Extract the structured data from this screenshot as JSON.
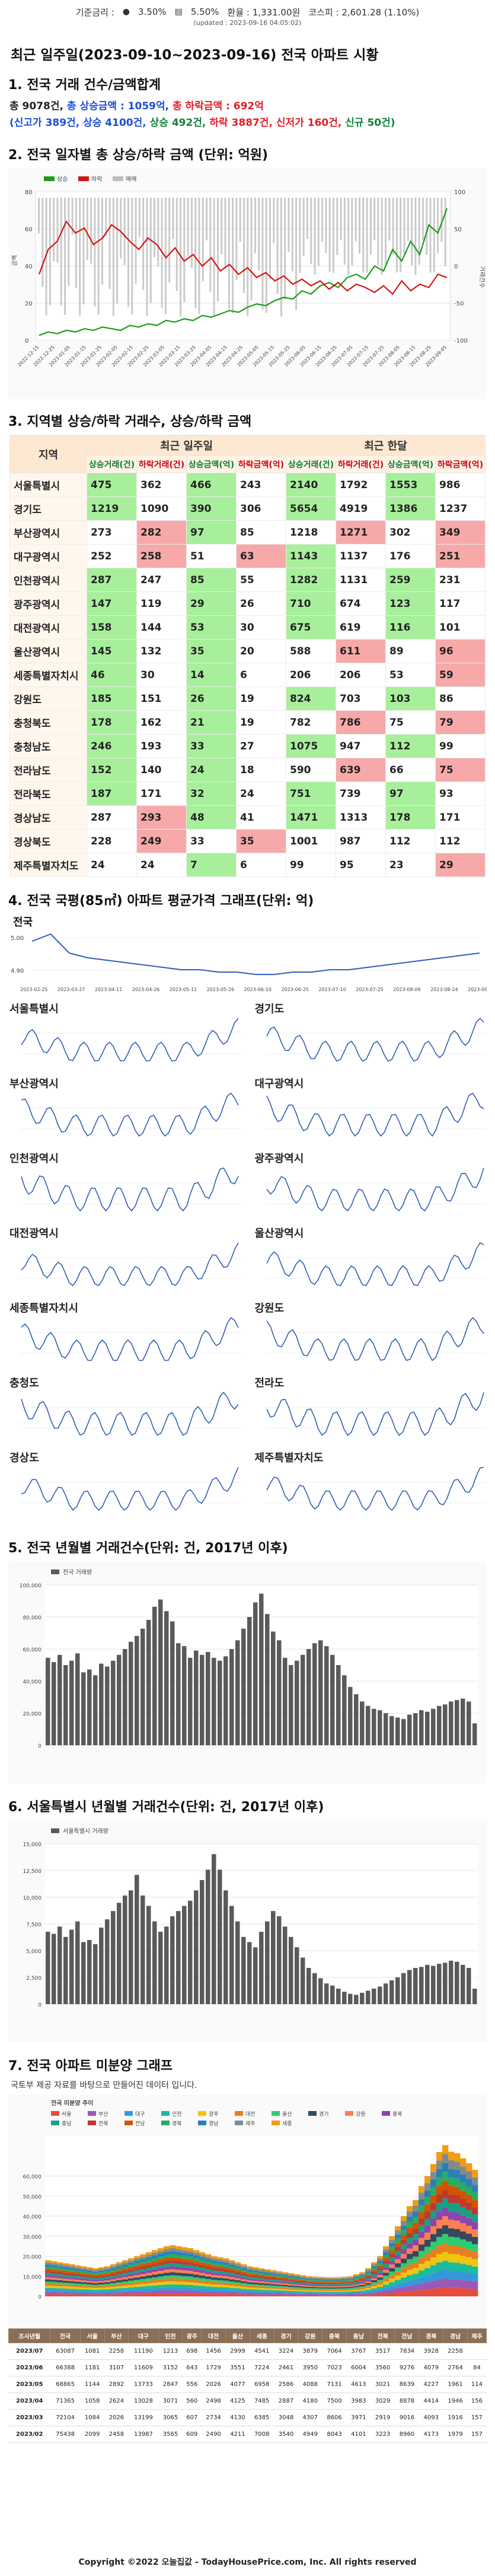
{
  "ticker": {
    "rate_label": "기준금리 :",
    "kr_rate": "3.50%",
    "us_rate": "5.50%",
    "fx": "환율 : 1,331.00원",
    "kospi": "코스피 : 2,601.28 (1.10%)",
    "updated": "(updated : 2023-09-16 04:05:02)"
  },
  "title": "최근 일주일(2023-09-10~2023-09-16) 전국 아파트 시황",
  "sections": {
    "s1": "1. 전국 거래 건수/금액합계",
    "s2": "2. 전국 일자별 총 상승/하락 금액 (단위: 억원)",
    "s3": "3. 지역별 상승/하락 거래수, 상승/하락 금액",
    "s4": "4. 전국 국평(85㎡) 아파트 평균가격 그래프(단위: 억)",
    "s5": "5. 전국 년월별 거래건수(단위: 건, 2017년 이후)",
    "s6": "6. 서울특별시 년월별 거래건수(단위: 건, 2017년 이후)",
    "s7": "7. 전국 아파트 미분양 그래프"
  },
  "summary": {
    "total": "총 9078건,",
    "up_amount": "총 상승금액 : 1059억,",
    "down_amount": "총 하락금액 : 692억",
    "line2_open": "(신고가 389건, 상승 4100건,",
    "flat": "상승 492건,",
    "line2_down": "하락 3887건, 신저가 160건,",
    "new": "신규 50건)"
  },
  "chart2": {
    "legend": [
      "상승",
      "하락",
      "매매"
    ],
    "ylabel": "금액",
    "y2label": "거래건수",
    "yticks": [
      "0",
      "20",
      "40",
      "60",
      "80"
    ],
    "y2ticks": [
      "100",
      "50",
      "0",
      "-50",
      "-100"
    ],
    "xticks": [
      "2022-12-15",
      "2022-12-25",
      "2023-01-05",
      "2023-01-15",
      "2023-01-25",
      "2023-02-05",
      "2023-02-15",
      "2023-02-25",
      "2023-03-05",
      "2023-03-15",
      "2023-03-25",
      "2023-04-05",
      "2023-04-15",
      "2023-04-25",
      "2023-05-05",
      "2023-05-15",
      "2023-05-25",
      "2023-06-05",
      "2023-06-15",
      "2023-06-25",
      "2023-07-05",
      "2023-07-15",
      "2023-07-25",
      "2023-08-05",
      "2023-08-15",
      "2023-08-25",
      "2023-09-05"
    ]
  },
  "table": {
    "h_region": "지역",
    "h_week": "최근 일주일",
    "h_month": "최근 한달",
    "sub": [
      "상승거래(건)",
      "하락거래(건)",
      "상승금액(억)",
      "하락금액(억)",
      "상승거래(건)",
      "하락거래(건)",
      "상승금액(억)",
      "하락금액(억)"
    ],
    "rows": [
      {
        "name": "서울특별시",
        "v": [
          "475",
          "362",
          "466",
          "243",
          "2140",
          "1792",
          "1553",
          "986"
        ],
        "h": [
          "g",
          "",
          "g",
          "",
          "g",
          "",
          "g",
          ""
        ]
      },
      {
        "name": "경기도",
        "v": [
          "1219",
          "1090",
          "390",
          "306",
          "5654",
          "4919",
          "1386",
          "1237"
        ],
        "h": [
          "g",
          "",
          "g",
          "",
          "g",
          "",
          "g",
          ""
        ]
      },
      {
        "name": "부산광역시",
        "v": [
          "273",
          "282",
          "97",
          "85",
          "1218",
          "1271",
          "302",
          "349"
        ],
        "h": [
          "",
          "r",
          "g",
          "",
          "",
          "r",
          "",
          "r"
        ]
      },
      {
        "name": "대구광역시",
        "v": [
          "252",
          "258",
          "51",
          "63",
          "1143",
          "1137",
          "176",
          "251"
        ],
        "h": [
          "",
          "r",
          "",
          "r",
          "g",
          "",
          "",
          "r"
        ]
      },
      {
        "name": "인천광역시",
        "v": [
          "287",
          "247",
          "85",
          "55",
          "1282",
          "1131",
          "259",
          "231"
        ],
        "h": [
          "g",
          "",
          "g",
          "",
          "g",
          "",
          "g",
          ""
        ]
      },
      {
        "name": "광주광역시",
        "v": [
          "147",
          "119",
          "29",
          "26",
          "710",
          "674",
          "123",
          "117"
        ],
        "h": [
          "g",
          "",
          "g",
          "",
          "g",
          "",
          "g",
          ""
        ]
      },
      {
        "name": "대전광역시",
        "v": [
          "158",
          "144",
          "53",
          "30",
          "675",
          "619",
          "116",
          "101"
        ],
        "h": [
          "g",
          "",
          "g",
          "",
          "g",
          "",
          "g",
          ""
        ]
      },
      {
        "name": "울산광역시",
        "v": [
          "145",
          "132",
          "35",
          "20",
          "588",
          "611",
          "89",
          "96"
        ],
        "h": [
          "g",
          "",
          "g",
          "",
          "",
          "r",
          "",
          "r"
        ]
      },
      {
        "name": "세종특별자치시",
        "v": [
          "46",
          "30",
          "14",
          "6",
          "206",
          "206",
          "53",
          "59"
        ],
        "h": [
          "g",
          "",
          "g",
          "",
          "",
          "",
          "",
          "r"
        ]
      },
      {
        "name": "강원도",
        "v": [
          "185",
          "151",
          "26",
          "19",
          "824",
          "703",
          "103",
          "86"
        ],
        "h": [
          "g",
          "",
          "g",
          "",
          "g",
          "",
          "g",
          ""
        ]
      },
      {
        "name": "충청북도",
        "v": [
          "178",
          "162",
          "21",
          "19",
          "782",
          "786",
          "75",
          "79"
        ],
        "h": [
          "g",
          "",
          "g",
          "",
          "",
          "r",
          "",
          "r"
        ]
      },
      {
        "name": "충청남도",
        "v": [
          "246",
          "193",
          "33",
          "27",
          "1075",
          "947",
          "112",
          "99"
        ],
        "h": [
          "g",
          "",
          "g",
          "",
          "g",
          "",
          "g",
          ""
        ]
      },
      {
        "name": "전라남도",
        "v": [
          "152",
          "140",
          "24",
          "18",
          "590",
          "639",
          "66",
          "75"
        ],
        "h": [
          "g",
          "",
          "g",
          "",
          "",
          "r",
          "",
          "r"
        ]
      },
      {
        "name": "전라북도",
        "v": [
          "187",
          "171",
          "32",
          "24",
          "751",
          "739",
          "97",
          "93"
        ],
        "h": [
          "g",
          "",
          "g",
          "",
          "g",
          "",
          "g",
          ""
        ]
      },
      {
        "name": "경상남도",
        "v": [
          "287",
          "293",
          "48",
          "41",
          "1471",
          "1313",
          "178",
          "171"
        ],
        "h": [
          "",
          "r",
          "g",
          "",
          "g",
          "",
          "g",
          ""
        ]
      },
      {
        "name": "경상북도",
        "v": [
          "228",
          "249",
          "33",
          "35",
          "1001",
          "987",
          "112",
          "112"
        ],
        "h": [
          "",
          "r",
          "",
          "r",
          "",
          "",
          "",
          ""
        ]
      },
      {
        "name": "제주특별자치도",
        "v": [
          "24",
          "24",
          "7",
          "6",
          "99",
          "95",
          "23",
          "29"
        ],
        "h": [
          "",
          "",
          "g",
          "",
          "",
          "",
          "",
          "r"
        ]
      }
    ]
  },
  "chart4": {
    "national": {
      "label": "전국",
      "yticks": [
        "5.00",
        "4.90"
      ],
      "xticks": [
        "2023-02-25",
        "2023-03-27",
        "2023-04-11",
        "2023-04-26",
        "2023-05-11",
        "2023-05-26",
        "2023-06-10",
        "2023-06-25",
        "2023-07-10",
        "2023-07-25",
        "2023-08-09",
        "2023-08-24",
        "2023-09-08"
      ]
    },
    "regions": [
      "서울특별시",
      "경기도",
      "부산광역시",
      "대구광역시",
      "인천광역시",
      "광주광역시",
      "대전광역시",
      "울산광역시",
      "세종특별자치시",
      "강원도",
      "충청도",
      "전라도",
      "경상도",
      "제주특별자치도"
    ]
  },
  "chart5": {
    "legend": "전국 거래량",
    "yticks": [
      "0",
      "20,000",
      "40,000",
      "60,000",
      "80,000",
      "100,000"
    ]
  },
  "chart6": {
    "legend": "서울특별시 거래량",
    "yticks": [
      "0",
      "2,500",
      "5,000",
      "7,500",
      "10,000",
      "12,500",
      "15,000"
    ]
  },
  "chart7": {
    "note": "국토부 제공 자료를 바탕으로 만들어진 데이터 입니다.",
    "legend_title": "전국 미분양 추이",
    "legend": [
      "서울",
      "부산",
      "대구",
      "인천",
      "광주",
      "대전",
      "울산",
      "경기",
      "강원",
      "충북",
      "충남",
      "전북",
      "전남",
      "경북",
      "경남",
      "제주",
      "세종"
    ],
    "yticks": [
      "0",
      "10,000",
      "20,000",
      "30,000",
      "40,000",
      "50,000",
      "60,000"
    ]
  },
  "unsold": {
    "headers": [
      "조사년월",
      "전국",
      "서울",
      "부산",
      "대구",
      "인천",
      "광주",
      "대전",
      "울산",
      "세종",
      "경기",
      "강원",
      "충북",
      "충남",
      "전북",
      "전남",
      "경북",
      "경남",
      "제주"
    ],
    "rows": [
      [
        "2023/07",
        "63087",
        "1081",
        "2258",
        "11190",
        "1213",
        "698",
        "1456",
        "2999",
        "4541",
        "3224",
        "3879",
        "7064",
        "3767",
        "3517",
        "7834",
        "3928",
        "2258",
        ""
      ],
      [
        "2023/06",
        "66388",
        "1181",
        "3107",
        "11609",
        "3152",
        "643",
        "1729",
        "3551",
        "7224",
        "2461",
        "3950",
        "7023",
        "6004",
        "3560",
        "9276",
        "4079",
        "2764",
        "84"
      ],
      [
        "2023/05",
        "68865",
        "1144",
        "2892",
        "13733",
        "2847",
        "556",
        "2026",
        "4077",
        "6958",
        "2586",
        "4088",
        "7131",
        "4613",
        "3021",
        "8639",
        "4227",
        "1961",
        "114"
      ],
      [
        "2023/04",
        "71365",
        "1058",
        "2624",
        "13028",
        "3071",
        "560",
        "2498",
        "4125",
        "7485",
        "2887",
        "4180",
        "7500",
        "3983",
        "3029",
        "8878",
        "4414",
        "1946",
        "156"
      ],
      [
        "2023/03",
        "72104",
        "1084",
        "2026",
        "13199",
        "3065",
        "607",
        "2734",
        "4130",
        "6385",
        "3048",
        "4307",
        "8606",
        "3971",
        "2919",
        "9016",
        "4093",
        "1916",
        "157"
      ],
      [
        "2023/02",
        "75438",
        "2099",
        "2458",
        "13987",
        "3565",
        "609",
        "2490",
        "4211",
        "7008",
        "3540",
        "4949",
        "8043",
        "4101",
        "3223",
        "8960",
        "4173",
        "1979",
        "157"
      ]
    ]
  },
  "footer": "Copyright ©2022 오늘집값 - TodayHousePrice.com, Inc. All rights reserved",
  "colors": {
    "up": "#1c9a1c",
    "down": "#d41414",
    "volume": "#bdbdbd",
    "line": "#2f5fb3",
    "bar": "#5a5a5a"
  },
  "chart_data": [
    {
      "type": "line",
      "title": "전국 일자별 총 상승/하락 금액",
      "series": [
        {
          "name": "상승",
          "values": [
            3,
            5,
            4,
            6,
            5,
            7,
            6,
            8,
            7,
            6,
            9,
            8,
            10,
            9,
            12,
            11,
            13,
            12,
            15,
            14,
            16,
            18,
            17,
            20,
            22,
            21,
            24,
            26,
            25,
            30,
            28,
            33,
            35,
            32,
            38,
            40,
            37,
            45,
            42,
            55,
            48,
            60,
            52,
            70,
            65,
            80
          ]
        },
        {
          "name": "하락",
          "values": [
            40,
            55,
            60,
            72,
            65,
            68,
            58,
            62,
            70,
            66,
            60,
            55,
            62,
            58,
            50,
            56,
            48,
            52,
            45,
            50,
            42,
            46,
            40,
            44,
            38,
            41,
            36,
            39,
            34,
            37,
            33,
            36,
            31,
            35,
            30,
            34,
            32,
            29,
            33,
            28,
            36,
            30,
            34,
            32,
            40,
            38
          ]
        }
      ]
    },
    {
      "type": "line",
      "title": "전국",
      "values": [
        5.02,
        5.05,
        4.97,
        4.95,
        4.94,
        4.93,
        4.92,
        4.91,
        4.9,
        4.9,
        4.89,
        4.89,
        4.88,
        4.88,
        4.89,
        4.89,
        4.9,
        4.9,
        4.91,
        4.92,
        4.93,
        4.94,
        4.95,
        4.96,
        4.97
      ]
    },
    {
      "type": "bar",
      "title": "전국 거래량",
      "values": [
        60000,
        57000,
        62000,
        55000,
        58000,
        63000,
        50000,
        52000,
        48000,
        56000,
        54000,
        58000,
        62000,
        66000,
        71000,
        75000,
        80000,
        86000,
        95000,
        100000,
        92000,
        85000,
        70000,
        68000,
        60000,
        65000,
        62000,
        64000,
        60000,
        58000,
        61000,
        66000,
        72000,
        80000,
        88000,
        98000,
        104000,
        90000,
        78000,
        72000,
        60000,
        55000,
        58000,
        62000,
        66000,
        70000,
        72000,
        68000,
        62000,
        55000,
        48000,
        40000,
        35000,
        30000,
        27000,
        25000,
        24000,
        22000,
        20000,
        19000,
        18000,
        21000,
        22000,
        24000,
        23000,
        25000,
        27000,
        28000,
        30000,
        31000,
        32000,
        30000,
        15000
      ]
    },
    {
      "type": "bar",
      "title": "서울특별시 거래량",
      "values": [
        7000,
        6800,
        7500,
        6500,
        7200,
        8000,
        6000,
        6200,
        5800,
        7400,
        8200,
        9000,
        9800,
        10500,
        11000,
        12500,
        10500,
        9500,
        8000,
        7000,
        7500,
        8500,
        9000,
        9500,
        10000,
        11000,
        12000,
        13000,
        14500,
        13000,
        11000,
        9500,
        8000,
        6500,
        6000,
        5500,
        7000,
        8000,
        9000,
        8500,
        7500,
        6500,
        5500,
        4500,
        3500,
        3000,
        2500,
        2000,
        1800,
        1500,
        1200,
        1000,
        900,
        1100,
        1300,
        1500,
        1700,
        2000,
        2300,
        2600,
        3000,
        3300,
        3500,
        3600,
        3800,
        3700,
        3900,
        4000,
        4200,
        4100,
        3800,
        3500,
        1500
      ]
    },
    {
      "type": "area",
      "title": "전국 미분양 추이",
      "values": [
        18000,
        17500,
        17000,
        16500,
        16000,
        15500,
        15000,
        14500,
        14000,
        14500,
        15000,
        16000,
        17000,
        18000,
        19000,
        20000,
        21000,
        22000,
        23000,
        24000,
        25000,
        25500,
        25000,
        24500,
        24000,
        23000,
        22000,
        21000,
        20000,
        19500,
        19000,
        18000,
        17000,
        16000,
        15000,
        14500,
        14000,
        13500,
        13000,
        12500,
        12000,
        11500,
        11000,
        10500,
        10000,
        9800,
        9600,
        9500,
        9400,
        9500,
        9700,
        10000,
        11000,
        12000,
        14000,
        17000,
        20000,
        25000,
        30000,
        35000,
        40000,
        45000,
        48000,
        55000,
        60000,
        66000,
        72000,
        75438,
        72104,
        71365,
        68865,
        66388,
        63087
      ]
    }
  ]
}
